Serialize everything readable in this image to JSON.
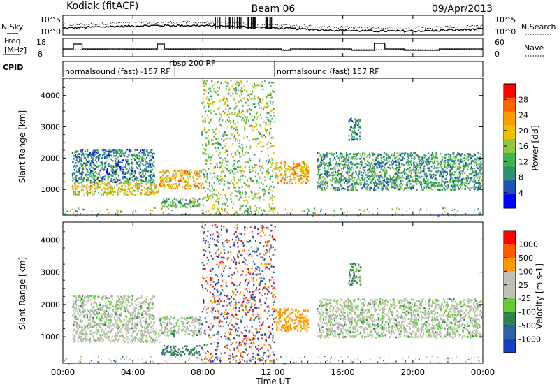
{
  "header": {
    "station": "Kodiak (fitACF)",
    "beam": "Beam 06",
    "date": "09/Apr/2013"
  },
  "noise_panel": {
    "left_label": "N.Sky",
    "right_label": "N.Search",
    "right_legend_line": "dotted",
    "left_ticks": [
      "10^5",
      "10^0"
    ],
    "right_ticks": [
      "10^5",
      "10^0"
    ]
  },
  "freq_panel": {
    "left_label_line1": "Freq.",
    "left_label_line2": "[MHz]",
    "right_label": "Nave",
    "right_legend_line": "dotted",
    "left_ticks": [
      "18",
      "8"
    ],
    "right_ticks": [
      "60",
      "0"
    ]
  },
  "cpid_panel": {
    "label": "CPID",
    "segments": [
      {
        "start_h": 0,
        "end_h": 6.4,
        "text": "normalsound (fast) -157 RF"
      },
      {
        "start_h": 6.4,
        "end_h": 12.1,
        "text": "rbsp 200 RF"
      },
      {
        "start_h": 12.1,
        "end_h": 24,
        "text": "normalsound (fast) 157 RF"
      }
    ]
  },
  "power_panel": {
    "ylabel": "Slant Range [km]",
    "yticks": [
      "1000",
      "2000",
      "3000",
      "4000"
    ],
    "colorbar_label": "Power [dB]",
    "colorbar_ticks": [
      "4",
      "8",
      "12",
      "16",
      "20",
      "24",
      "28"
    ],
    "colorbar_colors": [
      "#0000ff",
      "#1f4fb8",
      "#2f8f6f",
      "#3fb34f",
      "#8fc73f",
      "#f0c000",
      "#ff9900",
      "#ff6000",
      "#ff0000"
    ]
  },
  "velocity_panel": {
    "ylabel": "Slant Range [km]",
    "yticks": [
      "1000",
      "2000",
      "3000",
      "4000"
    ],
    "colorbar_label": "Velocity [m s-1]",
    "colorbar_ticks": [
      "1000",
      "500",
      "100",
      "25",
      "-25",
      "-100",
      "-500",
      "-1000"
    ],
    "colorbar_colors": [
      "#1a3fbf",
      "#2f5fa5",
      "#2f7f4f",
      "#66cc33",
      "#c0c0b8",
      "#c0c0b8",
      "#ff9900",
      "#ff5a00",
      "#ff0000"
    ]
  },
  "xaxis": {
    "label": "Time UT",
    "ticks": [
      "00:00",
      "04:00",
      "08:00",
      "12:00",
      "16:00",
      "20:00",
      "00:00"
    ]
  },
  "chart_data": {
    "type": "heatmap",
    "title": "Kodiak (fitACF) Beam 06 09/Apr/2013",
    "xlabel": "Time UT",
    "ylabel": "Slant Range [km]",
    "xlim_hours": [
      0,
      24
    ],
    "ylim_km": [
      180,
      4550
    ],
    "panels": [
      "Power [dB]",
      "Velocity [m s-1]"
    ],
    "power_range_db": [
      0,
      30
    ],
    "velocity_range_ms": [
      -1000,
      1000
    ],
    "echo_regions": [
      {
        "t0": 0.5,
        "t1": 5.5,
        "r0": 850,
        "r1": 1250,
        "power_db": 18,
        "velocity_ms": -10
      },
      {
        "t0": 0.5,
        "t1": 5.2,
        "r0": 1250,
        "r1": 2300,
        "power_db": 8,
        "velocity_ms": 0
      },
      {
        "t0": 5.5,
        "t1": 7.9,
        "r0": 1050,
        "r1": 1650,
        "power_db": 20,
        "velocity_ms": 0
      },
      {
        "t0": 5.6,
        "t1": 7.8,
        "r0": 450,
        "r1": 750,
        "power_db": 12,
        "velocity_ms": 80
      },
      {
        "t0": 7.9,
        "t1": 12.1,
        "r0": 200,
        "r1": 4500,
        "power_db": 14,
        "velocity_ms": 0
      },
      {
        "t0": 12.1,
        "t1": 14.0,
        "r0": 1200,
        "r1": 1900,
        "power_db": 20,
        "velocity_ms": -350
      },
      {
        "t0": 14.5,
        "t1": 23.9,
        "r0": 1000,
        "r1": 2200,
        "power_db": 10,
        "velocity_ms": 0
      },
      {
        "t0": 16.3,
        "t1": 17.0,
        "r0": 2600,
        "r1": 3300,
        "power_db": 8,
        "velocity_ms": 30
      }
    ]
  }
}
